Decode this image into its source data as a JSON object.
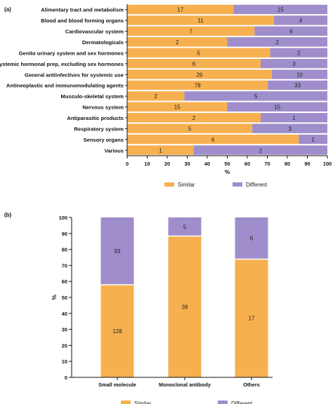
{
  "colors": {
    "similar": "#f7b04f",
    "different": "#9f8ecb"
  },
  "chart_data": [
    {
      "panel_label": "(a)",
      "type": "bar",
      "orientation": "horizontal",
      "stacking": "percent",
      "categories": [
        "Alimentary tract and metabolism",
        "Blood and blood forming organs",
        "Cardiovascular system",
        "Dermatologicals",
        "Genito urinary system and sex hormones",
        "Systemic hormonal prep, excluding sex hormones",
        "General antiinfectives for systemic use",
        "Antineoplastic and immunomodulating agents",
        "Musculo-skeletal system",
        "Nervous system",
        "Antiparasitic products",
        "Respiratory system",
        "Sensory organs",
        "Various"
      ],
      "series": [
        {
          "name": "Similar",
          "values": [
            17,
            11,
            7,
            2,
            5,
            6,
            26,
            78,
            2,
            15,
            2,
            5,
            6,
            1
          ]
        },
        {
          "name": "Different",
          "values": [
            15,
            4,
            4,
            2,
            2,
            3,
            10,
            33,
            5,
            15,
            1,
            3,
            1,
            2
          ]
        }
      ],
      "xlabel": "%",
      "xlim": [
        0,
        100
      ],
      "xticks": [
        0,
        10,
        20,
        30,
        40,
        50,
        60,
        70,
        80,
        90,
        100
      ],
      "legend": "bottom"
    },
    {
      "panel_label": "(b)",
      "type": "bar",
      "orientation": "vertical",
      "stacking": "percent",
      "categories": [
        "Small molecule",
        "Monoclonal antibody",
        "Others"
      ],
      "series": [
        {
          "name": "Similar",
          "values": [
            128,
            38,
            17
          ]
        },
        {
          "name": "Different",
          "values": [
            93,
            5,
            6
          ]
        }
      ],
      "ylabel": "%",
      "ylim": [
        0,
        100
      ],
      "yticks": [
        0,
        10,
        20,
        30,
        40,
        50,
        60,
        70,
        80,
        90,
        100
      ],
      "legend": "bottom"
    }
  ]
}
